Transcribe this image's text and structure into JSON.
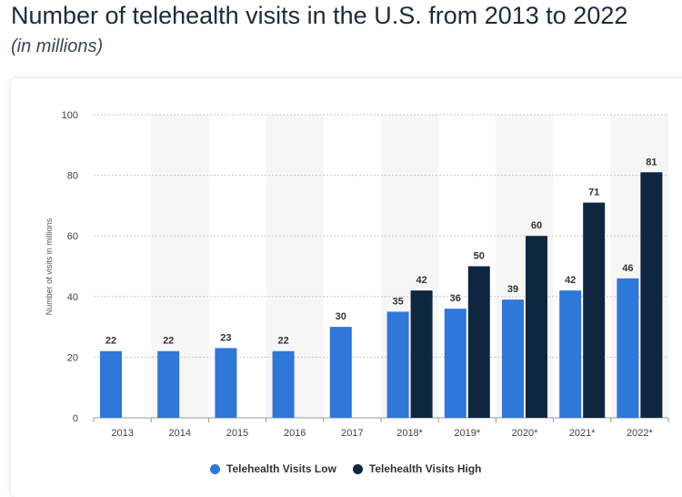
{
  "header": {
    "title": "Number of telehealth visits in the U.S. from 2013 to 2022",
    "subtitle": "(in millions)"
  },
  "colors": {
    "low": "#2f77d8",
    "high": "#0f2640",
    "band": "#f6f6f6",
    "grid": "#c9c9c9"
  },
  "chart_data": {
    "type": "bar",
    "title": "Number of telehealth visits in the U.S. from 2013 to 2022",
    "subtitle": "(in millions)",
    "xlabel": "",
    "ylabel": "Number of visits in millions",
    "ylim": [
      0,
      100
    ],
    "yticks": [
      0,
      20,
      40,
      60,
      80,
      100
    ],
    "categories": [
      "2013",
      "2014",
      "2015",
      "2016",
      "2017",
      "2018*",
      "2019*",
      "2020*",
      "2021*",
      "2022*"
    ],
    "series": [
      {
        "name": "Telehealth Visits Low",
        "values": [
          22,
          22,
          23,
          22,
          30,
          35,
          36,
          39,
          42,
          46
        ]
      },
      {
        "name": "Telehealth Visits High",
        "values": [
          null,
          null,
          null,
          null,
          null,
          42,
          50,
          60,
          71,
          81
        ]
      }
    ],
    "legend": "bottom-center",
    "grid": true
  }
}
